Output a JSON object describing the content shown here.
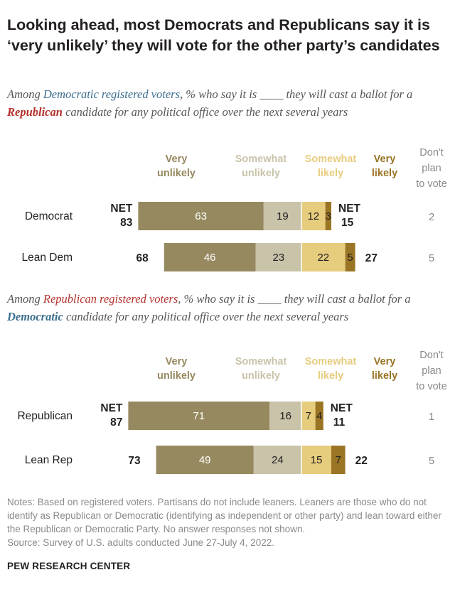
{
  "title": "Looking ahead, most Democrats and Republicans say it is ‘very unlikely’ they will vote for the other party’s candidates",
  "colors": {
    "very_unlikely": "#96895f",
    "somewhat_unlikely": "#c9c3aa",
    "somewhat_likely": "#e6cc7d",
    "very_likely": "#9a7524",
    "text": "#231f20",
    "gray": "#8a8a8a"
  },
  "sections": [
    {
      "subtitle": {
        "pre": "Among ",
        "highlight": "Democratic registered voters",
        "mid": ", % who say it is ____ they will cast a ballot for a ",
        "bold": "Republican",
        "post": " candidate for any political office over the next several years"
      }
    },
    {
      "subtitle": {
        "pre": "Among ",
        "highlight": "Republican registered voters",
        "mid": ", % who say it is ____ they will cast a ballot for a ",
        "bold": "Democratic",
        "post": " candidate for any political office over the next several years"
      }
    }
  ],
  "chart_data": [
    {
      "type": "bar",
      "stacked": "diverging",
      "categories": [
        "Democrat",
        "Lean Dem"
      ],
      "series": [
        {
          "name": "Very unlikely",
          "values": [
            63,
            46
          ]
        },
        {
          "name": "Somewhat unlikely",
          "values": [
            19,
            23
          ]
        },
        {
          "name": "Somewhat likely",
          "values": [
            12,
            22
          ]
        },
        {
          "name": "Very likely",
          "values": [
            3,
            5
          ]
        }
      ],
      "net_unlikely": [
        83,
        68
      ],
      "net_likely": [
        15,
        27
      ],
      "net_label": "NET",
      "dont_plan_header": "Don't plan to vote",
      "dont_plan_to_vote": [
        2,
        5
      ],
      "headers": {
        "very_unlikely": [
          "Very",
          "unlikely"
        ],
        "somewhat_unlikely": [
          "Somewhat",
          "unlikely"
        ],
        "somewhat_likely": [
          "Somewhat",
          "likely"
        ],
        "very_likely": [
          "Very",
          "likely"
        ],
        "dont_plan": [
          "Don't",
          "plan",
          "to vote"
        ]
      }
    },
    {
      "type": "bar",
      "stacked": "diverging",
      "categories": [
        "Republican",
        "Lean Rep"
      ],
      "series": [
        {
          "name": "Very unlikely",
          "values": [
            71,
            49
          ]
        },
        {
          "name": "Somewhat unlikely",
          "values": [
            16,
            24
          ]
        },
        {
          "name": "Somewhat likely",
          "values": [
            7,
            15
          ]
        },
        {
          "name": "Very likely",
          "values": [
            4,
            7
          ]
        }
      ],
      "net_unlikely": [
        87,
        73
      ],
      "net_likely": [
        11,
        22
      ],
      "net_label": "NET",
      "dont_plan_header": "Don't plan to vote",
      "dont_plan_to_vote": [
        1,
        5
      ],
      "headers": {
        "very_unlikely": [
          "Very",
          "unlikely"
        ],
        "somewhat_unlikely": [
          "Somewhat",
          "unlikely"
        ],
        "somewhat_likely": [
          "Somewhat",
          "likely"
        ],
        "very_likely": [
          "Very",
          "likely"
        ],
        "dont_plan": [
          "Don't",
          "plan",
          "to vote"
        ]
      }
    }
  ],
  "notes": "Notes: Based on registered voters. Partisans do not include leaners. Leaners are those who do not identify as Republican or Democratic (identifying as independent or other party) and lean toward either the Republican or Democratic Party. No answer responses not shown.",
  "source": "Source: Survey of U.S. adults conducted June 27-July 4, 2022.",
  "brand": "PEW RESEARCH CENTER"
}
